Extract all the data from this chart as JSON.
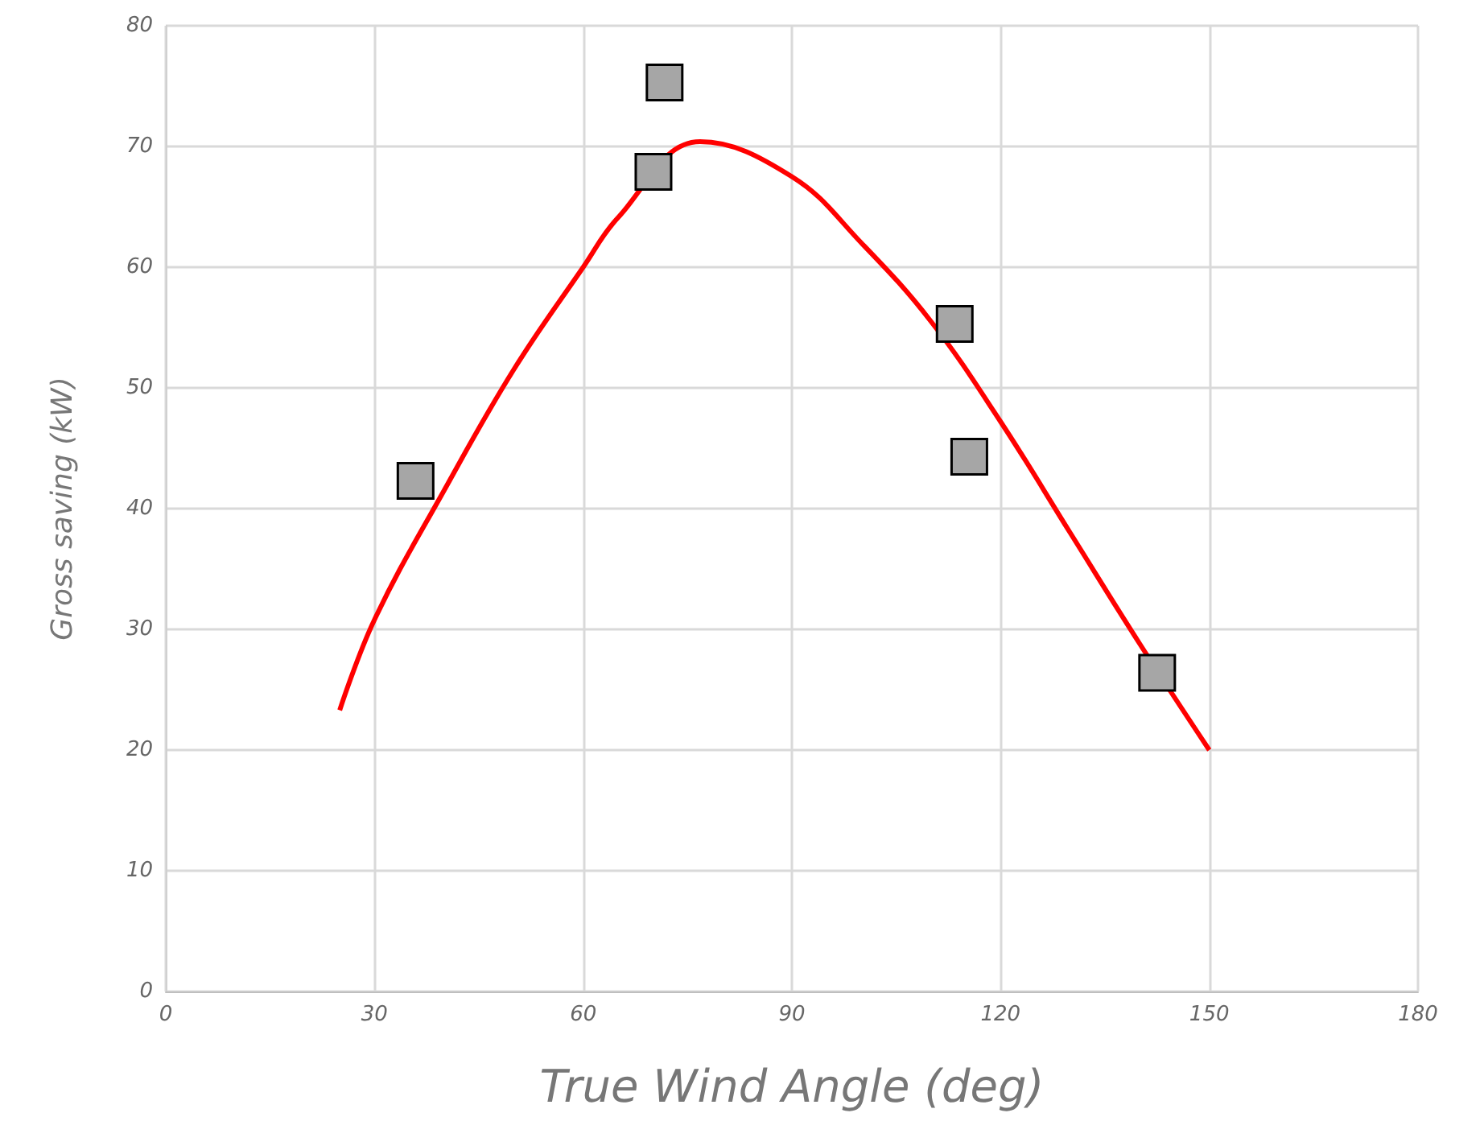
{
  "chart_data": {
    "type": "scatter",
    "xlabel": "True Wind Angle (deg)",
    "ylabel": "Gross saving (kW)",
    "xlim": [
      0,
      180
    ],
    "xticks": [
      0,
      30,
      60,
      90,
      120,
      150,
      180
    ],
    "ylim": [
      0,
      80
    ],
    "yticks": [
      0,
      10,
      20,
      30,
      40,
      50,
      60,
      70,
      80
    ],
    "grid": true,
    "marker": "square",
    "series": [
      {
        "color": "#a6a6a6",
        "x": [
          35.9,
          71.7,
          70.1,
          113.4,
          115.5,
          142.5
        ],
        "values": [
          42.3,
          75.3,
          67.9,
          55.3,
          44.3,
          26.4
        ]
      },
      {
        "type": "line",
        "color": "#ff0000",
        "marker": "none",
        "line_style": "solid",
        "x": [
          25,
          30,
          40,
          50,
          60,
          65,
          76.8,
          90,
          100,
          110,
          120,
          130,
          140,
          150
        ],
        "values": [
          23.3,
          30.8,
          41.5,
          51.5,
          60,
          64.1,
          70.4,
          67.5,
          62,
          55.5,
          47.2,
          38,
          28.8,
          20
        ]
      }
    ]
  }
}
